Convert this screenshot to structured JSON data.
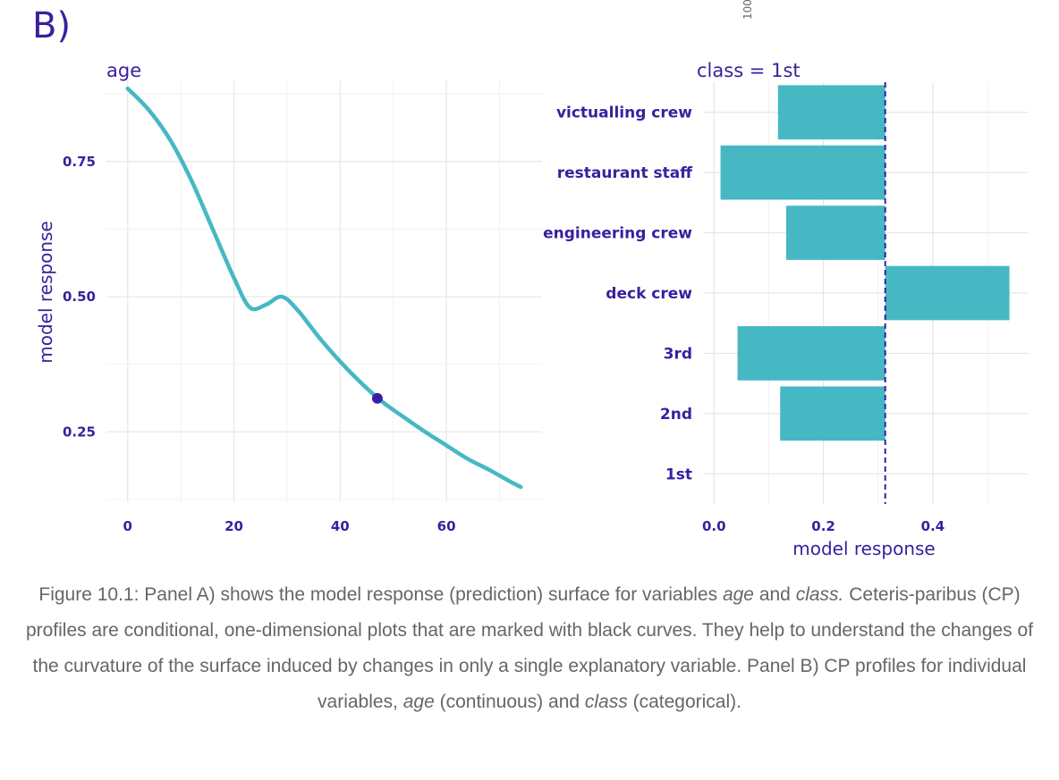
{
  "figure": {
    "panel_tag": "B)",
    "top_cropped_text": "100",
    "caption": {
      "parts": [
        {
          "text": "Figure 10.1: Panel A) shows the model response (prediction) surface for variables ",
          "italic": false
        },
        {
          "text": "age",
          "italic": true
        },
        {
          "text": " and ",
          "italic": false
        },
        {
          "text": "class.",
          "italic": true
        },
        {
          "text": " Ceteris-paribus (CP) profiles are conditional, one-dimensional plots that are marked with black curves. They help to understand the changes of the curvature of the surface induced by changes in only a single explanatory variable. Panel B) CP profiles for individual variables, ",
          "italic": false
        },
        {
          "text": "age",
          "italic": true
        },
        {
          "text": " (continuous) and ",
          "italic": false
        },
        {
          "text": "class",
          "italic": true
        },
        {
          "text": " (categorical).",
          "italic": false
        }
      ]
    }
  },
  "colors": {
    "series": "#46b8c4",
    "point": "#371ea3",
    "text": "#3a1f9e",
    "caption": "#666666"
  },
  "chart_data": [
    {
      "type": "line",
      "title": "age",
      "xlabel": "",
      "ylabel": "model response",
      "xlim": [
        -4,
        78
      ],
      "ylim": [
        0.12,
        0.9
      ],
      "x_ticks": [
        0,
        20,
        40,
        60
      ],
      "y_ticks": [
        0.25,
        0.5,
        0.75
      ],
      "grid": true,
      "series": [
        {
          "x": [
            0,
            4,
            8,
            12,
            16,
            20,
            23,
            26,
            29,
            32,
            36,
            40,
            44,
            48,
            52,
            56,
            60,
            64,
            68,
            72,
            74
          ],
          "y": [
            0.885,
            0.845,
            0.79,
            0.715,
            0.625,
            0.535,
            0.48,
            0.485,
            0.5,
            0.475,
            0.425,
            0.38,
            0.34,
            0.305,
            0.277,
            0.25,
            0.225,
            0.2,
            0.18,
            0.158,
            0.148
          ]
        }
      ],
      "observation": {
        "x": 47,
        "y": 0.312
      }
    },
    {
      "type": "bar",
      "orientation": "horizontal",
      "title": "class = 1st",
      "xlabel": "model response",
      "ylabel": "",
      "xlim": [
        -0.02,
        0.575
      ],
      "x_ticks": [
        0.0,
        0.2,
        0.4
      ],
      "grid": true,
      "baseline": 0.313,
      "categories": [
        "victualling crew",
        "restaurant staff",
        "engineering crew",
        "deck crew",
        "3rd",
        "2nd",
        "1st"
      ],
      "values": [
        0.117,
        0.012,
        0.132,
        0.54,
        0.043,
        0.121,
        0.313
      ]
    }
  ]
}
